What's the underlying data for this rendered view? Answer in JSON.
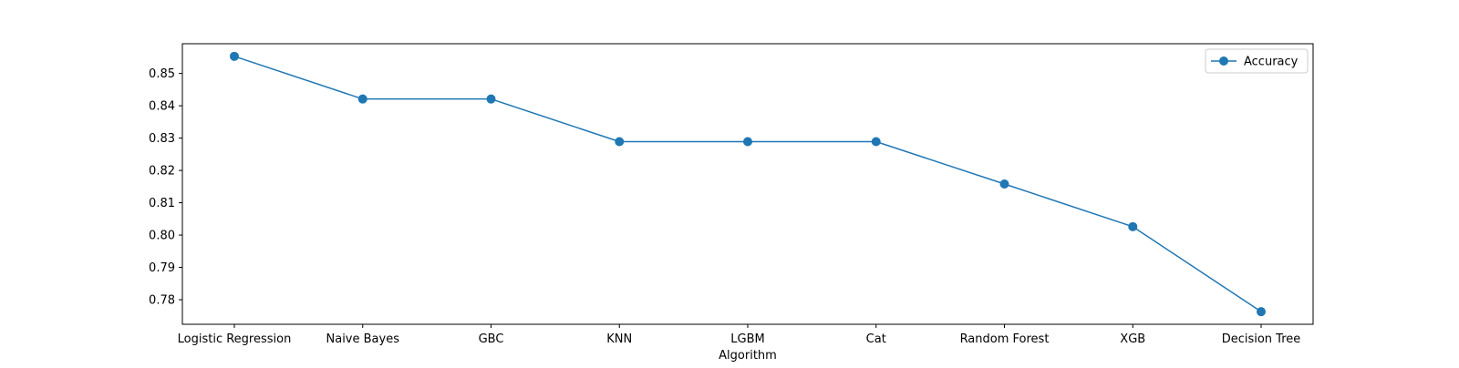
{
  "chart_data": {
    "type": "line",
    "title": "",
    "xlabel": "Algorithm",
    "ylabel": "",
    "categories": [
      "Logistic Regression",
      "Naive Bayes",
      "GBC",
      "KNN",
      "LGBM",
      "Cat",
      "Random Forest",
      "XGB",
      "Decision Tree"
    ],
    "series": [
      {
        "name": "Accuracy",
        "values": [
          0.8553,
          0.8421,
          0.8421,
          0.8289,
          0.8289,
          0.8289,
          0.8158,
          0.8026,
          0.7763
        ],
        "color": "#1f77b4",
        "marker": "circle"
      }
    ],
    "ylim": [
      0.7724,
      0.8592
    ],
    "yticks": [
      "0.78",
      "0.79",
      "0.80",
      "0.81",
      "0.82",
      "0.83",
      "0.84",
      "0.85"
    ],
    "grid": false,
    "legend": {
      "position": "top-right",
      "entries": [
        "Accuracy"
      ]
    }
  }
}
